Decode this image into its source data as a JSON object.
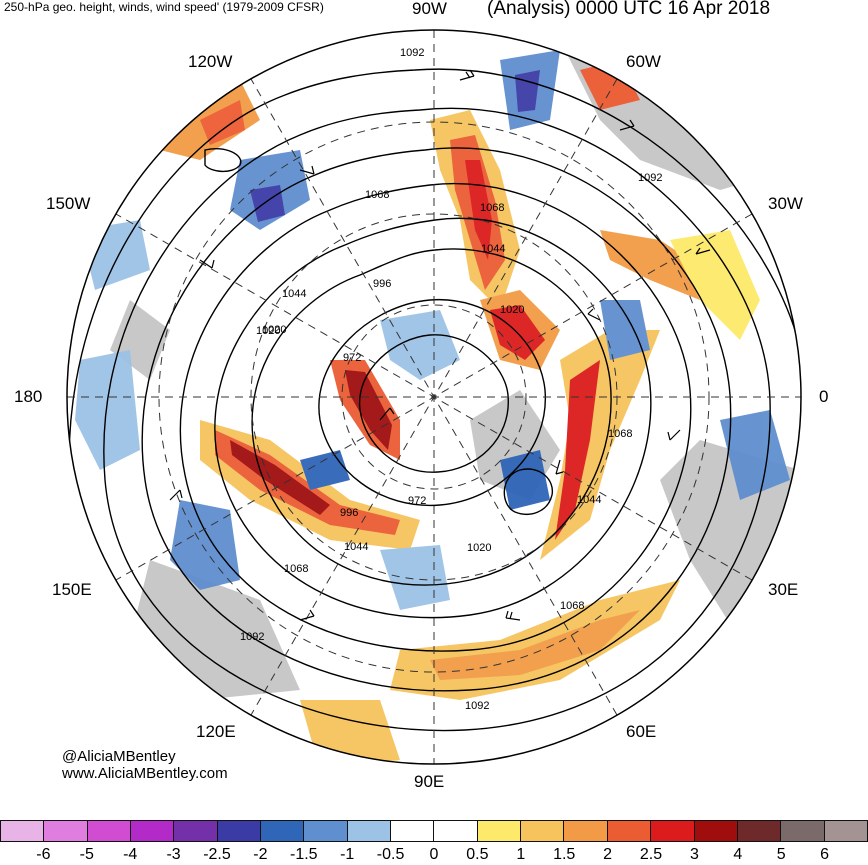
{
  "header": {
    "title_left": "250-hPa geo. height, winds, wind speed' (1979-2009 CFSR)",
    "title_right": "(Analysis) 0000 UTC 16 Apr 2018"
  },
  "map": {
    "projection": "north-polar-stereographic",
    "longitude_labels": {
      "top": "90W",
      "upper_right": "60W",
      "right_upper": "30W",
      "right": "0",
      "right_lower": "30E",
      "lower_right": "60E",
      "bottom": "90E",
      "lower_left": "120E",
      "left_lower": "150E",
      "left": "180",
      "left_upper": "150W",
      "upper_left": "120W"
    },
    "contour_labels": [
      "1092",
      "1068",
      "1044",
      "1020",
      "996",
      "972",
      "972",
      "996",
      "1020",
      "1044",
      "1068",
      "1092",
      "1092",
      "1068",
      "1044",
      "1020",
      "1068",
      "1044",
      "1020",
      "1068",
      "1092"
    ],
    "land_color": "#c8c8c8",
    "contour_color": "#000000"
  },
  "credits": {
    "handle": "@AliciaMBentley",
    "website": "www.AliciaMBentley.com"
  },
  "colorbar": {
    "ticks": [
      "-6",
      "-5",
      "-4",
      "-3",
      "-2.5",
      "-2",
      "-1.5",
      "-1",
      "-0.5",
      "0",
      "0.5",
      "1",
      "1.5",
      "2",
      "2.5",
      "3",
      "4",
      "5",
      "6"
    ],
    "colors": [
      "#e8b4e8",
      "#e07ee0",
      "#d04cd0",
      "#b22bc8",
      "#7330a8",
      "#3b3ba6",
      "#2f66b8",
      "#5f8fcf",
      "#9cc2e6",
      "#ffffff",
      "#ffffff",
      "#fde96a",
      "#f6c35c",
      "#f29a45",
      "#ec5c33",
      "#dc1c1c",
      "#a00d0d",
      "#6e2a2a",
      "#7a6a6a",
      "#a39393"
    ]
  }
}
